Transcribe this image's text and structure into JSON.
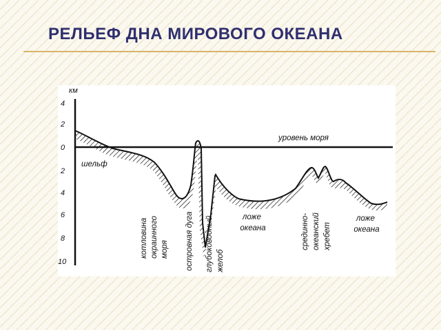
{
  "slide": {
    "title": "РЕЛЬЕФ ДНА МИРОВОГО ОКЕАНА"
  },
  "diagram": {
    "axis_unit": "км",
    "depth_ticks": [
      "4",
      "2",
      "0",
      "2",
      "4",
      "6",
      "8",
      "10"
    ],
    "labels": {
      "sea_level": "уровень моря",
      "shelf": "шельф",
      "marginal_basin": [
        "котловина",
        "окраинного",
        "моря"
      ],
      "island_arc": "островная дуга",
      "trench": [
        "глубоководный",
        "желоб"
      ],
      "ocean_floor_left": [
        "ложе",
        "океана"
      ],
      "ridge": [
        "срединно-",
        "океанский",
        "хребет"
      ],
      "ocean_floor_right": [
        "ложе",
        "океана"
      ]
    }
  },
  "colors": {
    "title": "#2f2f6e",
    "rule": "#d8b46a",
    "ink": "#111111"
  }
}
